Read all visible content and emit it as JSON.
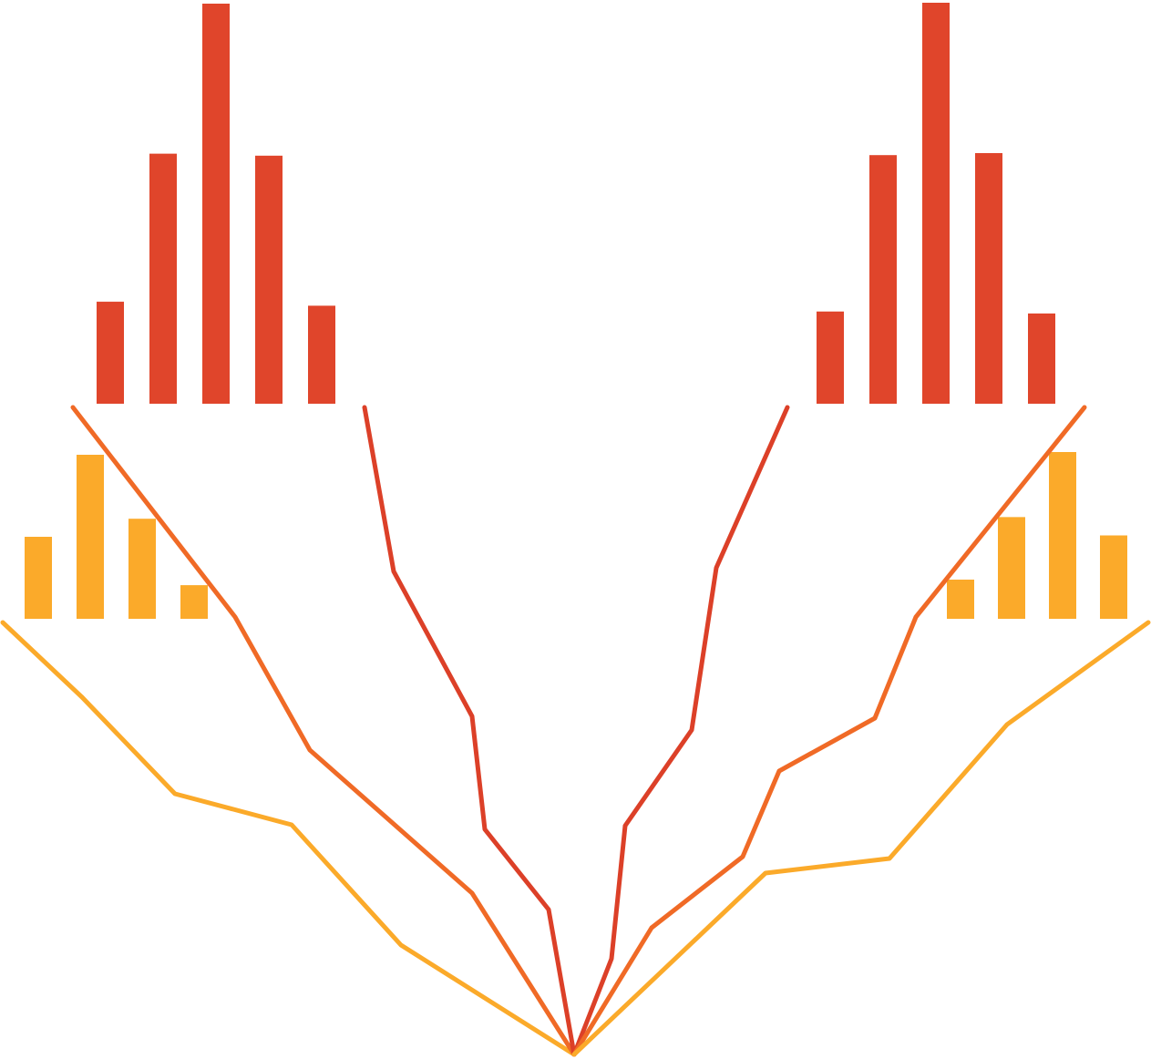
{
  "colors": {
    "background": "#ffffff",
    "red": "#e0452b",
    "deep_red": "#dc4028",
    "mid_orange": "#f06a26",
    "orange": "#f58b22",
    "amber": "#fbaa2a"
  },
  "bar_groups": [
    {
      "id": "upper-left",
      "color": "#e0452b",
      "values": [
        0.255,
        0.625,
        1.0,
        0.62,
        0.245
      ]
    },
    {
      "id": "upper-right",
      "color": "#e0452b",
      "values": [
        0.23,
        0.62,
        1.0,
        0.625,
        0.225
      ]
    },
    {
      "id": "lower-left",
      "color": "#fbaa2a",
      "values": [
        0.5,
        1.0,
        0.61,
        0.205
      ]
    },
    {
      "id": "lower-right",
      "color": "#fbaa2a",
      "values": [
        0.235,
        0.61,
        1.0,
        0.5
      ]
    }
  ],
  "funnel_lines": [
    {
      "id": "left-outer",
      "color": "#fbaa2a"
    },
    {
      "id": "left-middle",
      "color": "#f06a26"
    },
    {
      "id": "left-inner",
      "color": "#dc4028"
    },
    {
      "id": "right-inner",
      "color": "#dc4028"
    },
    {
      "id": "right-middle",
      "color": "#f06a26"
    },
    {
      "id": "right-outer",
      "color": "#fbaa2a"
    }
  ]
}
